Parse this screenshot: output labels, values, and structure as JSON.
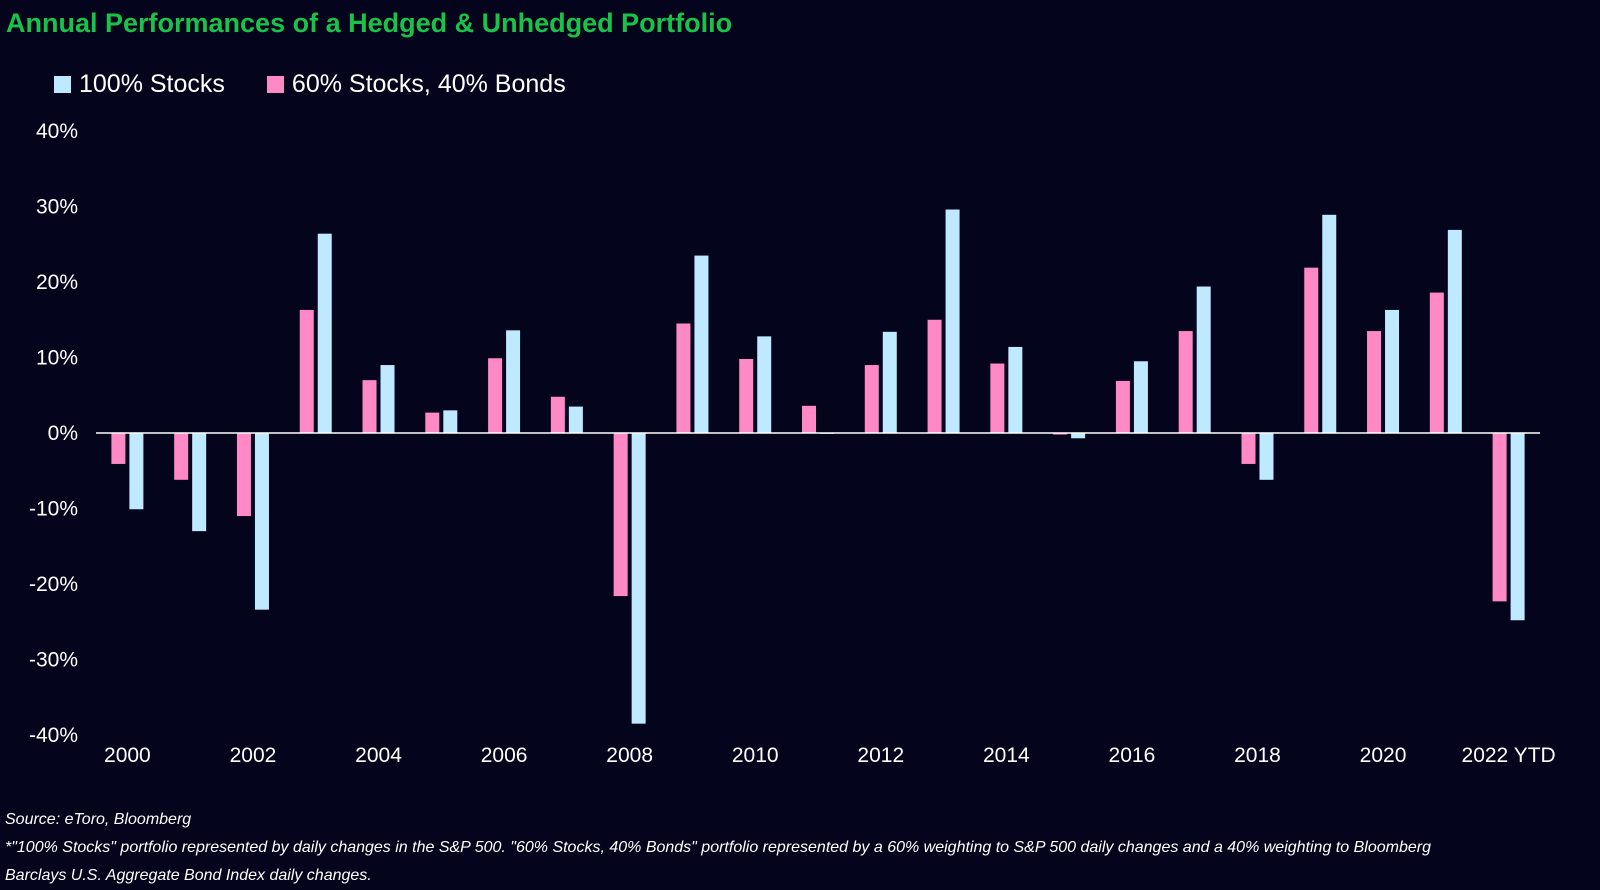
{
  "colors": {
    "background": "#04041c",
    "title": "#19c34a",
    "stocks": "#bfe9ff",
    "balanced": "#ff88c6",
    "zero_line": "#ffffff"
  },
  "chart_data": {
    "type": "bar",
    "title": "Annual Performances of a Hedged & Unhedged Portfolio",
    "xlabel": "",
    "ylabel": "",
    "categories": [
      "2000",
      "2001",
      "2002",
      "2003",
      "2004",
      "2005",
      "2006",
      "2007",
      "2008",
      "2009",
      "2010",
      "2011",
      "2012",
      "2013",
      "2014",
      "2015",
      "2016",
      "2017",
      "2018",
      "2019",
      "2020",
      "2021",
      "2022 YTD"
    ],
    "x_tick_labels": [
      "2000",
      "2002",
      "2004",
      "2006",
      "2008",
      "2010",
      "2012",
      "2014",
      "2016",
      "2018",
      "2020",
      "2022 YTD"
    ],
    "y_tick_labels": [
      "40%",
      "30%",
      "20%",
      "10%",
      "0%",
      "-10%",
      "-20%",
      "-30%",
      "-40%"
    ],
    "ylim": [
      -40,
      40
    ],
    "grid": false,
    "legend_position": "top-left",
    "series": [
      {
        "name": "100% Stocks",
        "color": "#bfe9ff",
        "values": [
          -10.1,
          -13.0,
          -23.4,
          26.4,
          9.0,
          3.0,
          13.6,
          3.5,
          -38.5,
          23.5,
          12.8,
          0.0,
          13.4,
          29.6,
          11.4,
          -0.7,
          9.5,
          19.4,
          -6.2,
          28.9,
          16.3,
          26.9,
          -24.8
        ]
      },
      {
        "name": "60% Stocks, 40% Bonds",
        "color": "#ff88c6",
        "values": [
          -4.1,
          -6.2,
          -11.0,
          16.3,
          7.0,
          2.7,
          9.9,
          4.8,
          -21.6,
          14.5,
          9.8,
          3.6,
          9.0,
          15.0,
          9.2,
          -0.2,
          6.9,
          13.5,
          -4.1,
          21.9,
          13.5,
          18.6,
          -22.3
        ]
      }
    ]
  },
  "notes": {
    "source": "Source: eToro, Bloomberg",
    "footnote_line1": "*\"100% Stocks\" portfolio represented by daily changes in the S&P 500. \"60% Stocks, 40% Bonds\" portfolio represented by a 60% weighting to S&P 500 daily changes and a 40% weighting to Bloomberg",
    "footnote_line2": "Barclays U.S. Aggregate Bond Index daily changes."
  }
}
